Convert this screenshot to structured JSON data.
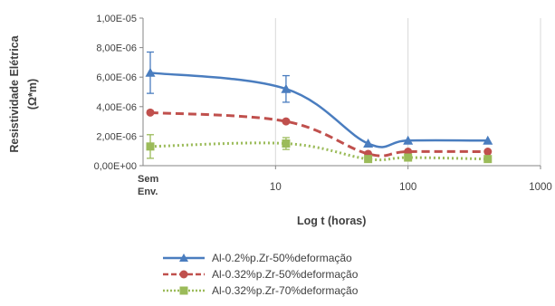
{
  "chart_data": {
    "type": "line",
    "title": "",
    "xlabel": "Log t (horas)",
    "ylabel_line1": "Resistividade Elétrica",
    "ylabel_line2": "(Ω*m)",
    "x_scale": "log",
    "x_ticks": [
      "10",
      "100",
      "1000"
    ],
    "x_special_tick": "Sem Env.",
    "y_ticks": [
      "0,00E+00",
      "2,00E-06",
      "4,00E-06",
      "6,00E-06",
      "8,00E-06",
      "1,00E-05"
    ],
    "ylim": [
      0,
      1e-05
    ],
    "grid": "vertical major lines",
    "legend_position": "bottom",
    "series": [
      {
        "name": "Al-0.2%p.Zr-50%deformação",
        "color": "#4a7dbf",
        "marker": "triangle",
        "line_style": "solid",
        "x": [
          "Sem Env.",
          12,
          50,
          100,
          400
        ],
        "y": [
          6.3e-06,
          5.2e-06,
          1.5e-06,
          1.7e-06,
          1.7e-06
        ],
        "error": [
          1.4e-06,
          9e-07,
          0,
          0,
          0
        ]
      },
      {
        "name": "Al-0.32%p.Zr-50%deformação",
        "color": "#c0504d",
        "marker": "circle",
        "line_style": "dashed",
        "x": [
          "Sem Env.",
          12,
          50,
          100,
          400
        ],
        "y": [
          3.6e-06,
          3e-06,
          8e-07,
          9.5e-07,
          9.5e-07
        ],
        "error": [
          0,
          0,
          0,
          0,
          0
        ]
      },
      {
        "name": "Al-0.32%p.Zr-70%deformação",
        "color": "#9bbb59",
        "marker": "square",
        "line_style": "dotted",
        "x": [
          "Sem Env.",
          12,
          50,
          100,
          400
        ],
        "y": [
          1.3e-06,
          1.5e-06,
          4.5e-07,
          5.5e-07,
          4.5e-07
        ],
        "error": [
          8e-07,
          4e-07,
          0,
          0,
          0
        ]
      }
    ]
  }
}
